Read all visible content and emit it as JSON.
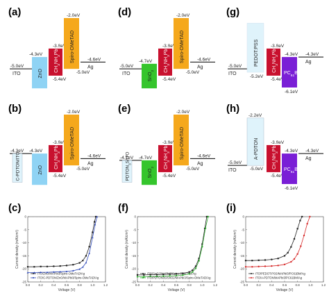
{
  "panels": [
    {
      "id": "a",
      "label": "(a)",
      "left_level": "-5.0eV",
      "left_name": "ITO",
      "etl_name": "ZnO",
      "etl_level": "-4.3eV",
      "abs_top": "-3.8eV",
      "abs_bottom": "-5.4eV",
      "abs_name": "CH3NH3PbI3",
      "htl_name": "Spiro-OMeTAD",
      "htl_top": "-2.0eV",
      "htl_bottom": "-5.0eV",
      "right_level": "-4.6eV",
      "right_name": "Ag"
    },
    {
      "id": "b",
      "label": "(b)",
      "left_level": "-4.3eV",
      "left_name": "C-PDTON/ITO",
      "etl_name": "ZnO",
      "etl_level": "-4.3eV",
      "abs_top": "-3.8eV",
      "abs_bottom": "-5.4eV",
      "abs_name": "CH3NH3PbI3",
      "htl_name": "Spiro-OMeTAD",
      "htl_top": "-2.0eV",
      "htl_bottom": "-5.0eV",
      "right_level": "-4.6eV",
      "right_name": "Ag"
    },
    {
      "id": "d",
      "label": "(d)",
      "left_level": "-5.0eV",
      "left_name": "ITO",
      "etl_name": "SnO2",
      "etl_level": "-4.7eV",
      "abs_top": "-3.8eV",
      "abs_bottom": "-5.4eV",
      "abs_name": "CH3NH3PbI3",
      "htl_name": "Spiro-OMeTAD",
      "htl_top": "-2.0eV",
      "htl_bottom": "-5.0eV",
      "right_level": "-4.6eV",
      "right_name": "Ag"
    },
    {
      "id": "e",
      "label": "(e)",
      "left_level": "-4.7eV",
      "left_name": "PDTON3S/ITO",
      "etl_name": "SnO2",
      "etl_level": "-4.7eV",
      "abs_top": "-3.8eV",
      "abs_bottom": "-5.4eV",
      "abs_name": "CH3NH3PbI3",
      "htl_name": "Spiro-OMeTAD",
      "htl_top": "-2.0eV",
      "htl_bottom": "-5.0eV",
      "right_level": "-4.6eV",
      "right_name": "Ag"
    },
    {
      "id": "g",
      "label": "(g)",
      "left_level": "-5.0eV",
      "left_name": "ITO",
      "htl_name": "PEDOT:PSS",
      "htl_level": "-5.2eV",
      "abs_top": "-3.8eV",
      "abs_bottom": "-5.4eV",
      "abs_name": "CH3NH3PbI3",
      "etl_name": "PC61BM",
      "etl_top": "-4.3eV",
      "etl_bottom": "-6.1eV",
      "right_level": "-4.3eV",
      "right_name": "Ag"
    },
    {
      "id": "h",
      "label": "(h)",
      "left_level": "-5.0eV",
      "left_name": "ITO",
      "htl_name": "A-PDTON",
      "htl_top": "-2.2eV",
      "htl_level": "-5.0eV",
      "abs_top": "-3.8eV",
      "abs_bottom": "-5.4eV",
      "abs_name": "CH3NH3PbI3",
      "etl_name": "PC61BM",
      "etl_top": "-4.3eV",
      "etl_bottom": "-6.1eV",
      "right_level": "-4.3eV",
      "right_name": "Ag"
    }
  ],
  "colors": {
    "zno": "#8fd3f4",
    "sno2": "#35c52c",
    "abs": "#c8102e",
    "htl": "#f5a81c",
    "pedot": "#dff3fb",
    "apdton": "#dff3fb",
    "pcbm": "#7a1fd6",
    "blue_curve": "#2a46b8",
    "green_curve": "#2faa2f",
    "red_curve": "#d62828",
    "black_curve": "#222222"
  },
  "chart_data": [
    {
      "type": "line",
      "label": "(c)",
      "xlabel": "Voltage (V)",
      "ylabel": "Current density (mA/cm²)",
      "xlim": [
        0.0,
        1.2
      ],
      "ylim": [
        -25,
        0
      ],
      "xticks": [
        "0.0",
        "0.2",
        "0.4",
        "0.6",
        "0.8",
        "1.0",
        "1.2"
      ],
      "yticks": [
        "0",
        "-5",
        "-10",
        "-15",
        "-20",
        "-25"
      ],
      "legend_position": "bottom-left",
      "series": [
        {
          "name": "ITO/ZnO/MAPbI3/Spiro-OMeTAD/Ag",
          "color": "#222222",
          "marker": "square",
          "x": [
            0,
            0.1,
            0.2,
            0.3,
            0.4,
            0.5,
            0.6,
            0.7,
            0.8,
            0.85,
            0.9,
            0.95,
            1.0,
            1.03,
            1.05
          ],
          "y": [
            -19.2,
            -19.2,
            -19.1,
            -19.1,
            -19.0,
            -18.9,
            -18.7,
            -18.4,
            -17.7,
            -16.8,
            -15.0,
            -11.5,
            -6.0,
            -2.0,
            0.0
          ]
        },
        {
          "name": "ITO/C-PDTON/ZnO/MAPbI3/Spiro-OMeTAD/Ag",
          "color": "#2a46b8",
          "marker": "triangle",
          "x": [
            0,
            0.1,
            0.2,
            0.3,
            0.4,
            0.5,
            0.6,
            0.7,
            0.8,
            0.85,
            0.9,
            0.95,
            1.0,
            1.04,
            1.07
          ],
          "y": [
            -21.4,
            -21.4,
            -21.3,
            -21.3,
            -21.2,
            -21.1,
            -21.0,
            -20.7,
            -20.1,
            -19.3,
            -17.6,
            -14.0,
            -8.0,
            -3.0,
            0.0
          ]
        }
      ]
    },
    {
      "type": "line",
      "label": "(f)",
      "xlabel": "Voltage (V)",
      "ylabel": "Current density (mA/cm²)",
      "xlim": [
        0.0,
        1.2
      ],
      "ylim": [
        -25,
        0
      ],
      "xticks": [
        "0.0",
        "0.2",
        "0.4",
        "0.6",
        "0.8",
        "1.0",
        "1.2"
      ],
      "yticks": [
        "0",
        "-5",
        "-10",
        "-15",
        "-20",
        "-25"
      ],
      "legend_position": "bottom-left",
      "series": [
        {
          "name": "ITO/SnO2/MAPbI3/Spiro-OMeTAD/Ag",
          "color": "#222222",
          "marker": "square",
          "x": [
            0,
            0.1,
            0.2,
            0.3,
            0.4,
            0.5,
            0.6,
            0.7,
            0.8,
            0.85,
            0.9,
            0.95,
            1.0,
            1.04,
            1.07
          ],
          "y": [
            -22.3,
            -22.3,
            -22.2,
            -22.2,
            -22.1,
            -22.0,
            -21.9,
            -21.7,
            -21.2,
            -20.5,
            -19.0,
            -16.0,
            -10.5,
            -4.5,
            0.0
          ]
        },
        {
          "name": "ITO/PDTON3S/SnO2/MAPbI3/Spiro-OMeTAD/Ag",
          "color": "#2faa2f",
          "marker": "circle",
          "x": [
            0,
            0.1,
            0.2,
            0.3,
            0.4,
            0.5,
            0.6,
            0.7,
            0.8,
            0.85,
            0.9,
            0.95,
            1.0,
            1.05,
            1.09
          ],
          "y": [
            -23.0,
            -23.0,
            -22.9,
            -22.9,
            -22.8,
            -22.7,
            -22.6,
            -22.4,
            -21.9,
            -21.2,
            -19.8,
            -16.9,
            -11.5,
            -4.5,
            0.0
          ]
        }
      ]
    },
    {
      "type": "line",
      "label": "(i)",
      "xlabel": "Voltage (V)",
      "ylabel": "Current density (mA/cm²)",
      "xlim": [
        0.0,
        1.2
      ],
      "ylim": [
        -25,
        0
      ],
      "xticks": [
        "0.0",
        "0.2",
        "0.4",
        "0.6",
        "0.8",
        "1.0",
        "1.2"
      ],
      "yticks": [
        "0",
        "-5",
        "-10",
        "-15",
        "-20",
        "-25"
      ],
      "legend_position": "bottom-left",
      "series": [
        {
          "name": "ITO/PEDOT:PSS/MAPbI3/PC61BM/Ag",
          "color": "#222222",
          "marker": "square",
          "x": [
            0,
            0.1,
            0.2,
            0.3,
            0.4,
            0.5,
            0.6,
            0.65,
            0.7,
            0.75,
            0.8,
            0.84,
            0.87
          ],
          "y": [
            -16.8,
            -16.8,
            -16.7,
            -16.6,
            -16.4,
            -16.0,
            -15.0,
            -13.8,
            -11.6,
            -8.5,
            -4.6,
            -1.5,
            0.0
          ]
        },
        {
          "name": "ITO/A-PDTON/MAPbI3/PC61BM/Ag",
          "color": "#d62828",
          "marker": "circle",
          "x": [
            0,
            0.1,
            0.2,
            0.3,
            0.4,
            0.5,
            0.6,
            0.7,
            0.75,
            0.8,
            0.85,
            0.9,
            0.95,
            0.99
          ],
          "y": [
            -19.2,
            -19.2,
            -19.1,
            -19.0,
            -18.9,
            -18.7,
            -18.3,
            -17.3,
            -16.2,
            -14.3,
            -11.3,
            -7.2,
            -2.7,
            0.0
          ]
        }
      ]
    }
  ]
}
